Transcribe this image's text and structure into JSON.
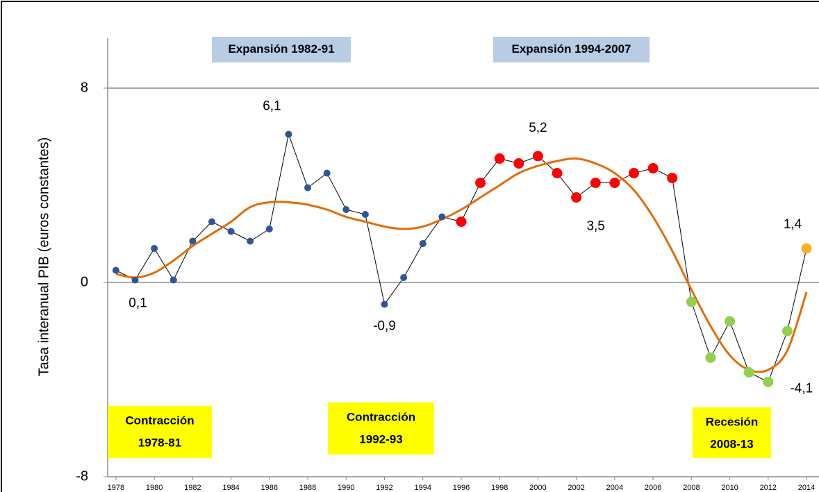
{
  "chart_data": {
    "type": "line",
    "y_label": "Tasa interanual PIB (euros constantes)",
    "x": [
      1978,
      1979,
      1980,
      1981,
      1982,
      1983,
      1984,
      1985,
      1986,
      1987,
      1988,
      1989,
      1990,
      1991,
      1992,
      1993,
      1994,
      1995,
      1996,
      1997,
      1998,
      1999,
      2000,
      2001,
      2002,
      2003,
      2004,
      2005,
      2006,
      2007,
      2008,
      2009,
      2010,
      2011,
      2012,
      2013,
      2014
    ],
    "series": [
      {
        "values": [
          0.5,
          0.1,
          1.4,
          0.1,
          1.7,
          2.5,
          2.1,
          1.7,
          2.2,
          6.1,
          3.9,
          4.5,
          3.0,
          2.8,
          -0.9,
          0.2,
          1.6,
          2.7,
          2.5,
          4.1,
          5.1,
          4.9,
          5.2,
          4.5,
          3.5,
          4.1,
          4.1,
          4.5,
          4.7,
          4.3,
          -0.8,
          -3.1,
          -1.6,
          -3.7,
          -4.1,
          -2.0,
          1.4
        ],
        "value_labels": [
          null,
          "0,1",
          null,
          null,
          null,
          null,
          null,
          null,
          null,
          "6,1",
          null,
          null,
          null,
          null,
          "-0,9",
          null,
          null,
          null,
          null,
          null,
          null,
          null,
          "5,2",
          null,
          "3,5",
          null,
          null,
          null,
          null,
          null,
          null,
          null,
          null,
          null,
          "-4,1",
          null,
          "1,4"
        ],
        "color": "#000000",
        "point_colors": [
          "#2f5597",
          "#2f5597",
          "#2f5597",
          "#2f5597",
          "#2f5597",
          "#2f5597",
          "#2f5597",
          "#2f5597",
          "#2f5597",
          "#2f5597",
          "#2f5597",
          "#2f5597",
          "#2f5597",
          "#2f5597",
          "#2f5597",
          "#2f5597",
          "#2f5597",
          "#2f5597",
          "#ff0000",
          "#ff0000",
          "#ff0000",
          "#ff0000",
          "#ff0000",
          "#ff0000",
          "#ff0000",
          "#ff0000",
          "#ff0000",
          "#ff0000",
          "#ff0000",
          "#ff0000",
          "#92d050",
          "#92d050",
          "#92d050",
          "#92d050",
          "#92d050",
          "#92d050",
          "#ffb020"
        ]
      },
      {
        "values": [
          0.35,
          0.2,
          0.4,
          0.9,
          1.5,
          2.0,
          2.5,
          3.1,
          3.3,
          3.3,
          3.2,
          3.0,
          2.7,
          2.5,
          2.3,
          2.2,
          2.3,
          2.6,
          3.0,
          3.5,
          4.0,
          4.5,
          4.8,
          5.0,
          5.1,
          4.9,
          4.5,
          3.8,
          2.7,
          1.3,
          -0.3,
          -1.8,
          -3.0,
          -3.6,
          -3.6,
          -2.8,
          -0.4
        ],
        "color": "#e36c0a",
        "smooth": true
      }
    ],
    "xlim": [
      1977.57,
      2014.65
    ],
    "xticks": [
      1978,
      1980,
      1982,
      1984,
      1986,
      1988,
      1990,
      1992,
      1994,
      1996,
      1998,
      2000,
      2002,
      2004,
      2006,
      2008,
      2010,
      2012,
      2014
    ],
    "ylim": [
      -8,
      8
    ],
    "yticks": [
      -8,
      0,
      8
    ],
    "grid": true,
    "annotations": [
      {
        "text": "Expansión 1982-91",
        "kind": "expansion"
      },
      {
        "text": "Expansión 1994-2007",
        "kind": "expansion"
      },
      {
        "text": "Contracción",
        "text2": "1978-81",
        "kind": "contraction"
      },
      {
        "text": "Contracción",
        "text2": "1992-93",
        "kind": "contraction"
      },
      {
        "text": "Recesión",
        "text2": "2008-13",
        "kind": "contraction"
      }
    ]
  }
}
